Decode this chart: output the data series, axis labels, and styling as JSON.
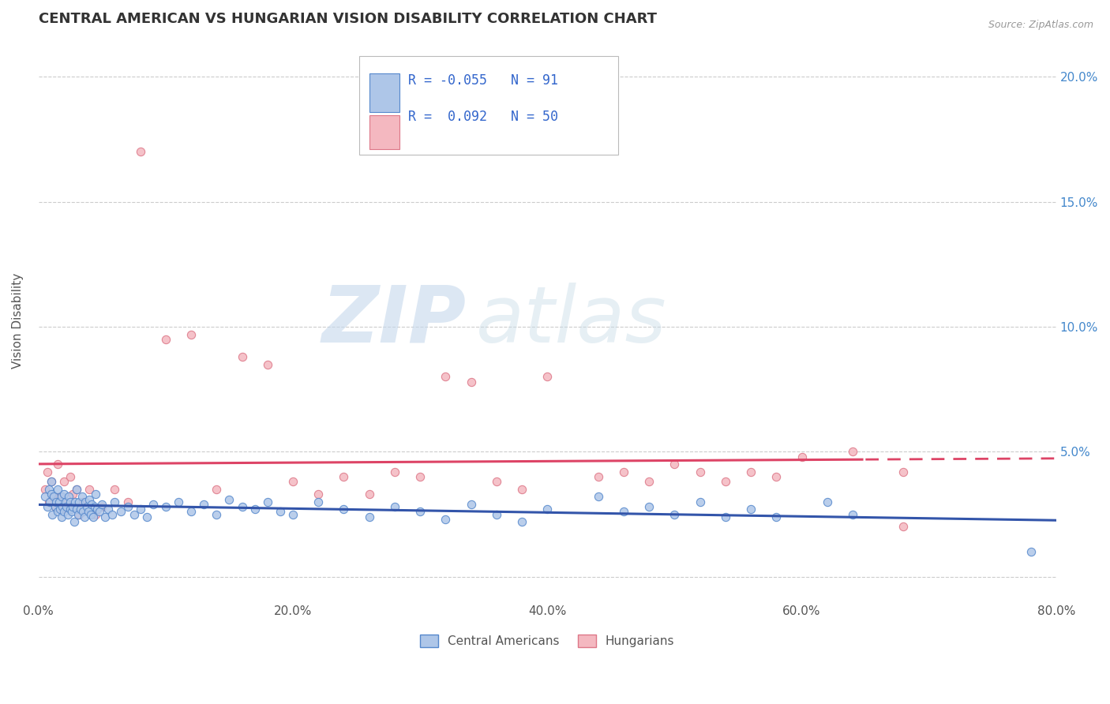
{
  "title": "CENTRAL AMERICAN VS HUNGARIAN VISION DISABILITY CORRELATION CHART",
  "source": "Source: ZipAtlas.com",
  "ylabel": "Vision Disability",
  "xlim": [
    0.0,
    0.8
  ],
  "ylim": [
    -0.01,
    0.215
  ],
  "yticks": [
    0.0,
    0.05,
    0.1,
    0.15,
    0.2
  ],
  "ytick_labels_right": [
    "",
    "5.0%",
    "10.0%",
    "15.0%",
    "20.0%"
  ],
  "xticks": [
    0.0,
    0.2,
    0.4,
    0.6,
    0.8
  ],
  "xtick_labels": [
    "0.0%",
    "20.0%",
    "40.0%",
    "60.0%",
    "80.0%"
  ],
  "blue_color": "#aec6e8",
  "pink_color": "#f4b8c0",
  "blue_edge": "#5588cc",
  "pink_edge": "#dd7788",
  "trend_blue": "#3355aa",
  "trend_pink": "#dd4466",
  "R_blue": -0.055,
  "N_blue": 91,
  "R_pink": 0.092,
  "N_pink": 50,
  "legend_label_blue": "Central Americans",
  "legend_label_pink": "Hungarians",
  "watermark_zip": "ZIP",
  "watermark_atlas": "atlas",
  "background_color": "#ffffff",
  "grid_color": "#cccccc",
  "blue_scatter_x": [
    0.005,
    0.007,
    0.008,
    0.009,
    0.01,
    0.01,
    0.011,
    0.012,
    0.013,
    0.014,
    0.015,
    0.015,
    0.016,
    0.017,
    0.018,
    0.018,
    0.019,
    0.02,
    0.02,
    0.021,
    0.022,
    0.023,
    0.024,
    0.025,
    0.025,
    0.026,
    0.027,
    0.028,
    0.029,
    0.03,
    0.03,
    0.031,
    0.032,
    0.033,
    0.034,
    0.035,
    0.036,
    0.037,
    0.038,
    0.039,
    0.04,
    0.041,
    0.042,
    0.043,
    0.044,
    0.045,
    0.046,
    0.048,
    0.05,
    0.052,
    0.055,
    0.058,
    0.06,
    0.065,
    0.07,
    0.075,
    0.08,
    0.085,
    0.09,
    0.1,
    0.11,
    0.12,
    0.13,
    0.14,
    0.15,
    0.16,
    0.17,
    0.18,
    0.19,
    0.2,
    0.22,
    0.24,
    0.26,
    0.28,
    0.3,
    0.32,
    0.34,
    0.36,
    0.38,
    0.4,
    0.44,
    0.46,
    0.48,
    0.5,
    0.52,
    0.54,
    0.56,
    0.58,
    0.62,
    0.64,
    0.78
  ],
  "blue_scatter_y": [
    0.032,
    0.028,
    0.035,
    0.03,
    0.038,
    0.033,
    0.025,
    0.032,
    0.028,
    0.03,
    0.035,
    0.026,
    0.03,
    0.027,
    0.032,
    0.024,
    0.028,
    0.033,
    0.026,
    0.03,
    0.028,
    0.025,
    0.032,
    0.03,
    0.027,
    0.026,
    0.028,
    0.022,
    0.03,
    0.035,
    0.027,
    0.025,
    0.03,
    0.027,
    0.032,
    0.026,
    0.024,
    0.03,
    0.028,
    0.026,
    0.031,
    0.025,
    0.029,
    0.024,
    0.028,
    0.033,
    0.027,
    0.026,
    0.029,
    0.024,
    0.027,
    0.025,
    0.03,
    0.026,
    0.028,
    0.025,
    0.027,
    0.024,
    0.029,
    0.028,
    0.03,
    0.026,
    0.029,
    0.025,
    0.031,
    0.028,
    0.027,
    0.03,
    0.026,
    0.025,
    0.03,
    0.027,
    0.024,
    0.028,
    0.026,
    0.023,
    0.029,
    0.025,
    0.022,
    0.027,
    0.032,
    0.026,
    0.028,
    0.025,
    0.03,
    0.024,
    0.027,
    0.024,
    0.03,
    0.025,
    0.01
  ],
  "pink_scatter_x": [
    0.005,
    0.007,
    0.008,
    0.01,
    0.012,
    0.013,
    0.015,
    0.017,
    0.018,
    0.02,
    0.022,
    0.025,
    0.027,
    0.03,
    0.032,
    0.035,
    0.04,
    0.045,
    0.05,
    0.06,
    0.07,
    0.08,
    0.1,
    0.12,
    0.14,
    0.16,
    0.18,
    0.2,
    0.22,
    0.24,
    0.26,
    0.28,
    0.3,
    0.32,
    0.34,
    0.36,
    0.38,
    0.4,
    0.44,
    0.46,
    0.48,
    0.5,
    0.52,
    0.54,
    0.56,
    0.58,
    0.6,
    0.64,
    0.68,
    0.68
  ],
  "pink_scatter_y": [
    0.035,
    0.042,
    0.03,
    0.038,
    0.032,
    0.028,
    0.045,
    0.032,
    0.027,
    0.038,
    0.03,
    0.04,
    0.033,
    0.035,
    0.025,
    0.03,
    0.035,
    0.025,
    0.028,
    0.035,
    0.03,
    0.17,
    0.095,
    0.097,
    0.035,
    0.088,
    0.085,
    0.038,
    0.033,
    0.04,
    0.033,
    0.042,
    0.04,
    0.08,
    0.078,
    0.038,
    0.035,
    0.08,
    0.04,
    0.042,
    0.038,
    0.045,
    0.042,
    0.038,
    0.042,
    0.04,
    0.048,
    0.05,
    0.042,
    0.02
  ]
}
